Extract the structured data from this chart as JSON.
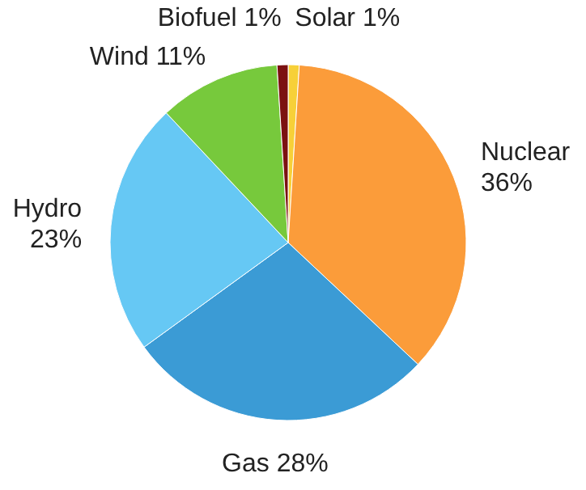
{
  "chart_data": {
    "type": "pie",
    "categories": [
      "Solar",
      "Nuclear",
      "Gas",
      "Hydro",
      "Wind",
      "Biofuel"
    ],
    "values": [
      1,
      36,
      28,
      23,
      11,
      1
    ],
    "colors": [
      "#f7d038",
      "#fb9c3a",
      "#3b9bd5",
      "#66c8f4",
      "#77c93c",
      "#7b1111"
    ],
    "value_labels": [
      "1%",
      "36%",
      "28%",
      "23%",
      "11%",
      "1%"
    ]
  }
}
